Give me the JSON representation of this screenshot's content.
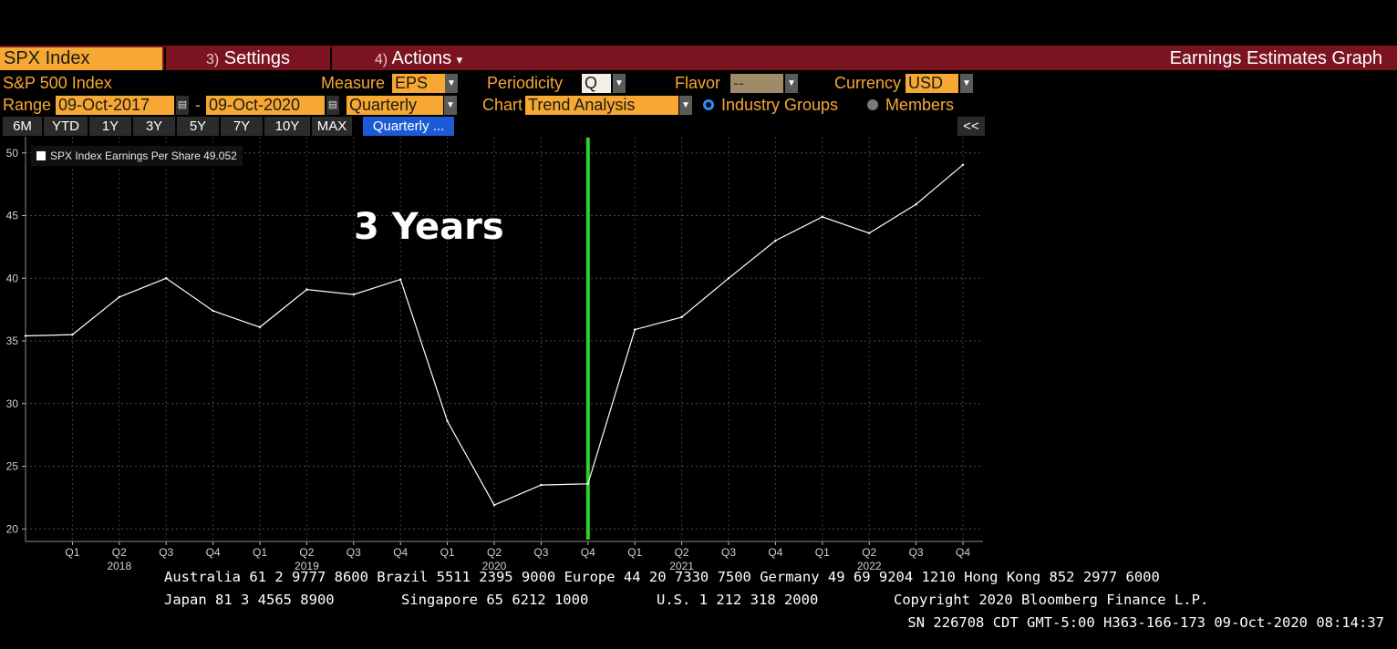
{
  "toolbar": {
    "ticker": "SPX Index",
    "settings_num": "3)",
    "settings_label": "Settings",
    "actions_num": "4)",
    "actions_label": "Actions",
    "actions_caret": "▾",
    "title": "Earnings Estimates Graph"
  },
  "controls": {
    "security_name": "S&P 500 Index",
    "measure_label": "Measure",
    "measure_value": "EPS",
    "periodicity_label": "Periodicity",
    "periodicity_value": "Q",
    "flavor_label": "Flavor",
    "flavor_value": "--",
    "currency_label": "Currency",
    "currency_value": "USD",
    "range_label": "Range",
    "range_start": "09-Oct-2017",
    "range_dash": "-",
    "range_end": "09-Oct-2020",
    "range_period": "Quarterly",
    "chart_label": "Chart",
    "chart_value": "Trend Analysis",
    "industry_groups": "Industry Groups",
    "members": "Members"
  },
  "range_buttons": [
    "6M",
    "YTD",
    "1Y",
    "3Y",
    "5Y",
    "7Y",
    "10Y",
    "MAX"
  ],
  "range_active": "Quarterly ...",
  "collapse_label": "<<",
  "icons": {
    "calendar": "calendar-icon",
    "dropdown": "chevron-down-icon",
    "collapse": "collapse-icon"
  },
  "colors": {
    "accent": "#f7a832",
    "header": "#7a1420",
    "marker": "#2bd42b",
    "line": "#ffffff"
  },
  "annotation": "3 Years",
  "chart_data": {
    "type": "line",
    "legend": "SPX Index Earnings Per Share 49.052",
    "series": [
      {
        "name": "SPX Index Earnings Per Share",
        "values": [
          35.4,
          35.5,
          38.5,
          40.0,
          37.4,
          36.1,
          39.1,
          38.7,
          39.9,
          28.6,
          21.9,
          23.5,
          23.6,
          35.9,
          36.9,
          40.0,
          43.0,
          44.9,
          43.6,
          45.9,
          49.052
        ]
      }
    ],
    "x": [
      "",
      "Q1",
      "Q2",
      "Q3",
      "Q4",
      "Q1",
      "Q2",
      "Q3",
      "Q4",
      "Q1",
      "Q2",
      "Q3",
      "Q4",
      "Q1",
      "Q2",
      "Q3",
      "Q4",
      "Q1",
      "Q2",
      "Q3",
      "Q4"
    ],
    "year_labels": [
      {
        "label": "2018",
        "index": 2
      },
      {
        "label": "2019",
        "index": 6
      },
      {
        "label": "2020",
        "index": 10
      },
      {
        "label": "2021",
        "index": 14
      },
      {
        "label": "2022",
        "index": 18
      }
    ],
    "yticks": [
      20,
      25,
      30,
      35,
      40,
      45,
      50
    ],
    "ylim": [
      19,
      51
    ],
    "marker_index": 12,
    "grid": true
  },
  "footer": {
    "line1": "Australia 61 2 9777 8600 Brazil 5511 2395 9000 Europe 44 20 7330 7500 Germany 49 69 9204 1210 Hong Kong 852 2977 6000",
    "japan": "Japan 81 3 4565 8900",
    "singapore": "Singapore 65 6212 1000",
    "us": "U.S. 1 212 318 2000",
    "copyright": "Copyright 2020 Bloomberg Finance L.P.",
    "line3": "SN 226708 CDT  GMT-5:00 H363-166-173 09-Oct-2020 08:14:37"
  }
}
